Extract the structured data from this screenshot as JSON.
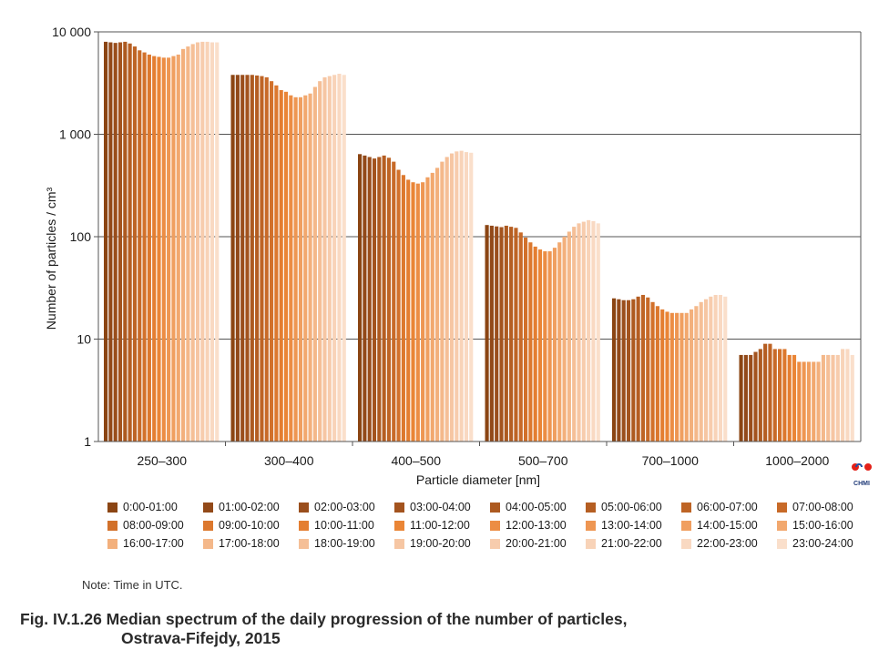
{
  "chart_data": {
    "type": "bar",
    "scale": "log",
    "ylim": [
      1,
      10000
    ],
    "ylabel": "Number of particles  / cm³",
    "xlabel": "Particle diameter [nm]",
    "yticks": [
      "1",
      "10",
      "100",
      "1 000",
      "10 000"
    ],
    "grid": true,
    "legend_position": "bottom",
    "categories": [
      "250–300",
      "300–400",
      "400–500",
      "500–700",
      "700–1000",
      "1000–2000"
    ],
    "series_names": [
      "0:00-01:00",
      "01:00-02:00",
      "02:00-03:00",
      "03:00-04:00",
      "04:00-05:00",
      "05:00-06:00",
      "06:00-07:00",
      "07:00-08:00",
      "08:00-09:00",
      "09:00-10:00",
      "10:00-11:00",
      "11:00-12:00",
      "12:00-13:00",
      "13:00-14:00",
      "14:00-15:00",
      "15:00-16:00",
      "16:00-17:00",
      "17:00-18:00",
      "18:00-19:00",
      "19:00-20:00",
      "20:00-21:00",
      "21:00-22:00",
      "22:00-23:00",
      "23:00-24:00"
    ],
    "colors": [
      "#8b4513",
      "#924919",
      "#9a4e1c",
      "#a3531e",
      "#ad5a20",
      "#b55e22",
      "#be6425",
      "#c86a28",
      "#d2712b",
      "#dc782e",
      "#e47e31",
      "#ea8536",
      "#ec8d44",
      "#ee9652",
      "#f09f60",
      "#f2a86e",
      "#f3b07c",
      "#f4b88a",
      "#f5bf97",
      "#f6c6a3",
      "#f7ccad",
      "#f8d3b8",
      "#f9d9c2",
      "#fadfcb"
    ],
    "values": [
      [
        8000,
        7900,
        7800,
        7900,
        8000,
        7700,
        7200,
        6600,
        6300,
        6000,
        5800,
        5700,
        5600,
        5600,
        5800,
        6000,
        6800,
        7200,
        7600,
        7900,
        8000,
        8000,
        7900,
        7900
      ],
      [
        3800,
        3800,
        3800,
        3800,
        3800,
        3750,
        3700,
        3600,
        3300,
        3000,
        2700,
        2600,
        2400,
        2300,
        2300,
        2400,
        2500,
        2900,
        3300,
        3600,
        3700,
        3800,
        3900,
        3800
      ],
      [
        640,
        620,
        600,
        580,
        600,
        620,
        590,
        540,
        450,
        400,
        360,
        340,
        330,
        340,
        380,
        420,
        470,
        540,
        600,
        650,
        680,
        690,
        670,
        660
      ],
      [
        130,
        128,
        126,
        124,
        128,
        125,
        122,
        110,
        98,
        88,
        80,
        75,
        72,
        72,
        78,
        88,
        100,
        112,
        125,
        135,
        140,
        145,
        142,
        135
      ],
      [
        25,
        24.5,
        24,
        24,
        24.5,
        26,
        27,
        25.5,
        23,
        21,
        19.5,
        18.5,
        18,
        18,
        18,
        18,
        19.5,
        21,
        23,
        24.5,
        26,
        27,
        27,
        26
      ],
      [
        7,
        7,
        7,
        7.5,
        8,
        9,
        9,
        8,
        8,
        8,
        7,
        7,
        6,
        6,
        6,
        6,
        6,
        7,
        7,
        7,
        7,
        8,
        8,
        7
      ]
    ]
  },
  "note": "Note: Time in UTC.",
  "caption": {
    "line1": "Fig. IV.1.26  Median spectrum of the daily progression of the number of particles,",
    "line2": "Ostrava-Fifejdy, 2015"
  },
  "logo": {
    "text": "CHMI",
    "colors": {
      "red": "#e32119",
      "blue": "#1f4fa3"
    }
  }
}
